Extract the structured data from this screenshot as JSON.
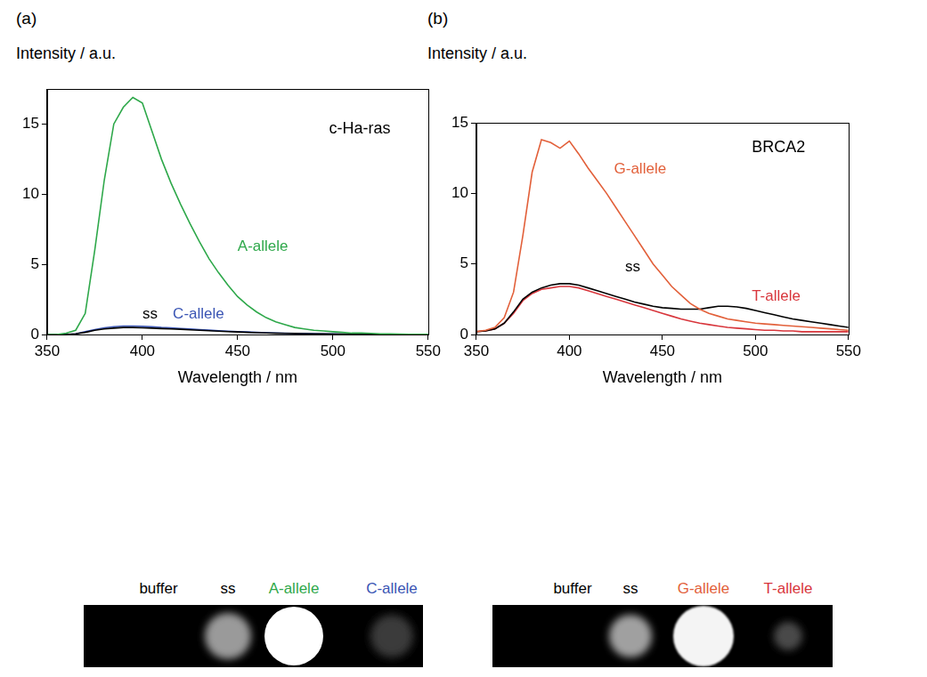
{
  "chart_data": [
    {
      "type": "line",
      "panel": "(a)",
      "ylabel": "Intensity / a.u.",
      "xlabel": "Wavelength / nm",
      "annotation": "c-Ha-ras",
      "x": [
        350,
        355,
        360,
        365,
        370,
        375,
        380,
        385,
        390,
        395,
        400,
        405,
        410,
        415,
        420,
        425,
        430,
        435,
        440,
        445,
        450,
        455,
        460,
        465,
        470,
        475,
        480,
        485,
        490,
        495,
        500,
        505,
        510,
        515,
        520,
        525,
        530,
        535,
        540,
        545,
        550
      ],
      "series": [
        {
          "name": "A-allele",
          "color": "#2ea84a",
          "values": [
            0,
            0,
            0.1,
            0.3,
            1.5,
            6,
            11,
            15,
            16.2,
            16.9,
            16.5,
            14.5,
            12.5,
            10.8,
            9.3,
            7.9,
            6.6,
            5.4,
            4.4,
            3.5,
            2.7,
            2.1,
            1.6,
            1.2,
            0.9,
            0.7,
            0.5,
            0.4,
            0.3,
            0.25,
            0.2,
            0.15,
            0.1,
            0.1,
            0.08,
            0.05,
            0.05,
            0.03,
            0.02,
            0.02,
            0.02
          ]
        },
        {
          "name": "ss",
          "color": "#000000",
          "values": [
            0,
            0,
            0,
            0.05,
            0.15,
            0.3,
            0.4,
            0.45,
            0.5,
            0.5,
            0.48,
            0.45,
            0.42,
            0.4,
            0.37,
            0.33,
            0.3,
            0.27,
            0.24,
            0.21,
            0.18,
            0.15,
            0.13,
            0.11,
            0.09,
            0.08,
            0.07,
            0.06,
            0.05,
            0.04,
            0.03,
            0.03,
            0.02,
            0.02,
            0.02,
            0.01,
            0.01,
            0.01,
            0.01,
            0.01,
            0.01
          ]
        },
        {
          "name": "C-allele",
          "color": "#3a55b4",
          "values": [
            0,
            0,
            0,
            0.05,
            0.2,
            0.35,
            0.48,
            0.55,
            0.6,
            0.6,
            0.58,
            0.55,
            0.5,
            0.47,
            0.43,
            0.39,
            0.35,
            0.31,
            0.27,
            0.24,
            0.21,
            0.18,
            0.15,
            0.13,
            0.11,
            0.09,
            0.08,
            0.07,
            0.06,
            0.05,
            0.04,
            0.03,
            0.03,
            0.02,
            0.02,
            0.02,
            0.01,
            0.01,
            0.01,
            0.01,
            0.01
          ]
        }
      ],
      "xlim": [
        350,
        550
      ],
      "xticks": [
        350,
        400,
        450,
        500,
        550
      ],
      "ylim": [
        0,
        17.5
      ],
      "yticks": [
        0,
        5,
        10,
        15
      ],
      "grid": false,
      "image_labels": [
        {
          "text": "buffer",
          "color": "#000000"
        },
        {
          "text": "ss",
          "color": "#000000"
        },
        {
          "text": "A-allele",
          "color": "#2ea84a"
        },
        {
          "text": "C-allele",
          "color": "#3a55b4"
        }
      ]
    },
    {
      "type": "line",
      "panel": "(b)",
      "ylabel": "Intensity / a.u.",
      "xlabel": "Wavelength / nm",
      "annotation": "BRCA2",
      "x": [
        350,
        355,
        360,
        365,
        370,
        375,
        380,
        385,
        390,
        395,
        400,
        405,
        410,
        415,
        420,
        425,
        430,
        435,
        440,
        445,
        450,
        455,
        460,
        465,
        470,
        475,
        480,
        485,
        490,
        495,
        500,
        505,
        510,
        515,
        520,
        525,
        530,
        535,
        540,
        545,
        550
      ],
      "series": [
        {
          "name": "G-allele",
          "color": "#e2603a",
          "values": [
            0.2,
            0.3,
            0.5,
            1.2,
            3,
            7,
            11.5,
            13.8,
            13.6,
            13.2,
            13.7,
            12.8,
            11.8,
            10.9,
            10,
            9,
            8,
            7,
            6,
            5,
            4.2,
            3.4,
            2.8,
            2.2,
            1.8,
            1.5,
            1.3,
            1.1,
            1.0,
            0.9,
            0.8,
            0.75,
            0.7,
            0.65,
            0.6,
            0.55,
            0.5,
            0.45,
            0.4,
            0.35,
            0.3
          ]
        },
        {
          "name": "ss",
          "color": "#000000",
          "values": [
            0.2,
            0.25,
            0.4,
            0.8,
            1.6,
            2.5,
            3.0,
            3.3,
            3.5,
            3.6,
            3.6,
            3.5,
            3.3,
            3.1,
            2.9,
            2.7,
            2.5,
            2.3,
            2.15,
            2.0,
            1.9,
            1.85,
            1.8,
            1.8,
            1.8,
            1.9,
            2.0,
            2.0,
            1.95,
            1.85,
            1.7,
            1.55,
            1.4,
            1.25,
            1.1,
            1.0,
            0.9,
            0.8,
            0.7,
            0.6,
            0.5
          ]
        },
        {
          "name": "T-allele",
          "color": "#d8363c",
          "values": [
            0.2,
            0.25,
            0.4,
            0.8,
            1.5,
            2.4,
            2.9,
            3.2,
            3.3,
            3.4,
            3.4,
            3.3,
            3.1,
            2.9,
            2.7,
            2.5,
            2.3,
            2.1,
            1.9,
            1.7,
            1.5,
            1.3,
            1.1,
            0.95,
            0.8,
            0.7,
            0.6,
            0.5,
            0.45,
            0.4,
            0.35,
            0.3,
            0.3,
            0.25,
            0.25,
            0.2,
            0.2,
            0.2,
            0.2,
            0.2,
            0.2
          ]
        }
      ],
      "xlim": [
        350,
        550
      ],
      "xticks": [
        350,
        400,
        450,
        500,
        550
      ],
      "ylim": [
        0,
        15
      ],
      "yticks": [
        0,
        5,
        10,
        15
      ],
      "grid": false,
      "image_labels": [
        {
          "text": "buffer",
          "color": "#000000"
        },
        {
          "text": "ss",
          "color": "#000000"
        },
        {
          "text": "G-allele",
          "color": "#e2603a"
        },
        {
          "text": "T-allele",
          "color": "#d8363c"
        }
      ]
    }
  ]
}
